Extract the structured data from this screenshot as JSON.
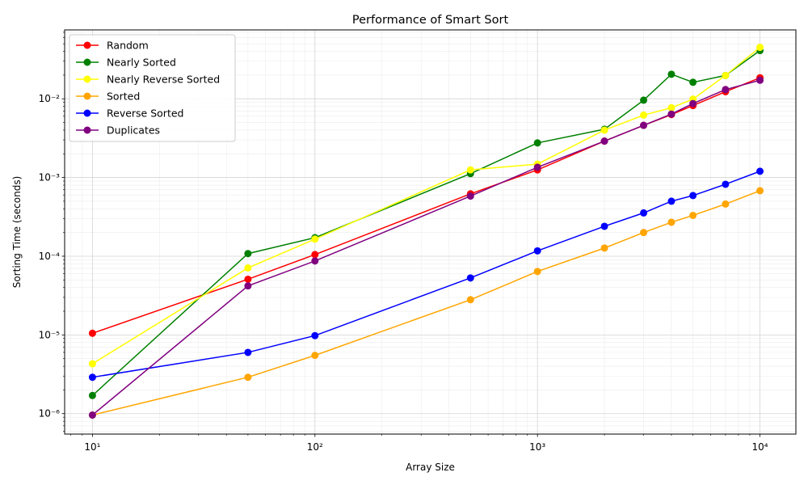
{
  "chart_data": {
    "type": "line",
    "title": "Performance of Smart Sort",
    "xlabel": "Array Size",
    "ylabel": "Sorting Time (seconds)",
    "xscale": "log",
    "yscale": "log",
    "xlim": [
      7.5,
      14500
    ],
    "ylim": [
      5.5e-07,
      0.075
    ],
    "x_ticks": [
      {
        "value": 10,
        "label": "10¹"
      },
      {
        "value": 100,
        "label": "10²"
      },
      {
        "value": 1000,
        "label": "10³"
      },
      {
        "value": 10000,
        "label": "10⁴"
      }
    ],
    "y_ticks": [
      {
        "value": 1e-06,
        "label": "10⁻⁶"
      },
      {
        "value": 1e-05,
        "label": "10⁻⁵"
      },
      {
        "value": 0.0001,
        "label": "10⁻⁴"
      },
      {
        "value": 0.001,
        "label": "10⁻³"
      },
      {
        "value": 0.01,
        "label": "10⁻²"
      }
    ],
    "grid": true,
    "legend_position": "top-left",
    "x": [
      10,
      50,
      100,
      500,
      1000,
      2000,
      3000,
      4000,
      5000,
      7000,
      10000
    ],
    "series": [
      {
        "name": "Random",
        "color": "#ff0000",
        "values": [
          1.05e-05,
          5.1e-05,
          0.000105,
          0.00062,
          0.00125,
          0.0029,
          0.0046,
          0.0063,
          0.0082,
          0.0123,
          0.0185
        ]
      },
      {
        "name": "Nearly Sorted",
        "color": "#008000",
        "values": [
          1.7e-06,
          0.000108,
          0.000172,
          0.00112,
          0.00275,
          0.0041,
          0.0096,
          0.0205,
          0.0162,
          0.0198,
          0.041
        ]
      },
      {
        "name": "Nearly Reverse Sorted",
        "color": "#ffff00",
        "values": [
          4.3e-06,
          7.1e-05,
          0.000165,
          0.00125,
          0.00148,
          0.004,
          0.0062,
          0.0077,
          0.0099,
          0.0198,
          0.045
        ]
      },
      {
        "name": "Sorted",
        "color": "#ffa500",
        "values": [
          9.6e-07,
          2.9e-06,
          5.5e-06,
          2.8e-05,
          6.4e-05,
          0.000127,
          0.0002,
          0.00027,
          0.00033,
          0.00046,
          0.00068
        ]
      },
      {
        "name": "Reverse Sorted",
        "color": "#0000ff",
        "values": [
          2.9e-06,
          6e-06,
          9.8e-06,
          5.3e-05,
          0.000117,
          0.00024,
          0.000355,
          0.0005,
          0.00059,
          0.00082,
          0.0012
        ]
      },
      {
        "name": "Duplicates",
        "color": "#800080",
        "values": [
          9.6e-07,
          4.2e-05,
          8.7e-05,
          0.00058,
          0.00135,
          0.0029,
          0.0046,
          0.0064,
          0.0087,
          0.0131,
          0.0172
        ]
      }
    ]
  }
}
